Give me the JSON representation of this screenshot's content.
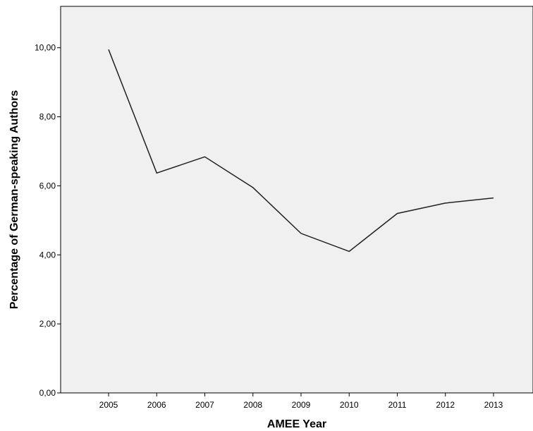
{
  "chart_data": {
    "type": "line",
    "title": "",
    "xlabel": "AMEE Year",
    "ylabel": "Percentage of German-speaking Authors",
    "x": [
      "2005",
      "2006",
      "2007",
      "2008",
      "2009",
      "2010",
      "2011",
      "2012",
      "2013"
    ],
    "series": [
      {
        "values": [
          9.95,
          6.37,
          6.84,
          5.95,
          4.62,
          4.1,
          5.2,
          5.5,
          5.65
        ]
      }
    ],
    "ylim": [
      0,
      11.2
    ],
    "yticks": [
      "0,00",
      "2,00",
      "4,00",
      "6,00",
      "8,00",
      "10,00"
    ],
    "grid": false,
    "legend": "none",
    "colors": {
      "plot_background": "#f0f0f0",
      "line": "#222222",
      "axis": "#000000"
    }
  }
}
